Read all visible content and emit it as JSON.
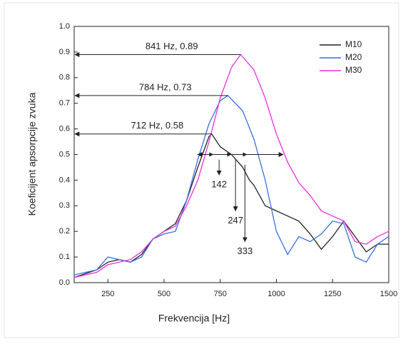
{
  "chart_data": {
    "type": "line",
    "xlabel": "Frekvencija [Hz]",
    "ylabel": "Koeficijent apsorpcije zvuka",
    "xlim": [
      100,
      1500
    ],
    "ylim": [
      0,
      1
    ],
    "xticks": [
      250,
      500,
      750,
      1000,
      1250,
      1500
    ],
    "yticks": [
      {
        "value": 0,
        "label": "0.0"
      },
      0.1,
      0.2,
      0.3,
      0.4,
      0.5,
      0.6,
      0.7,
      0.8,
      0.9,
      {
        "value": 1,
        "label": "1.0"
      }
    ],
    "legend": "upper right",
    "series": [
      {
        "name": "M10",
        "color": "#222222",
        "x": [
          100,
          200,
          250,
          300,
          350,
          400,
          450,
          500,
          550,
          600,
          650,
          700,
          712,
          750,
          800,
          850,
          880,
          900,
          950,
          1000,
          1050,
          1100,
          1150,
          1200,
          1250,
          1300,
          1350,
          1400,
          1450,
          1500
        ],
        "values": [
          0.02,
          0.05,
          0.08,
          0.09,
          0.08,
          0.11,
          0.17,
          0.2,
          0.23,
          0.32,
          0.45,
          0.57,
          0.58,
          0.53,
          0.5,
          0.45,
          0.4,
          0.38,
          0.3,
          0.28,
          0.26,
          0.24,
          0.19,
          0.13,
          0.18,
          0.24,
          0.18,
          0.12,
          0.15,
          0.15
        ]
      },
      {
        "name": "M20",
        "color": "#3b6fe0",
        "x": [
          100,
          200,
          250,
          300,
          350,
          400,
          450,
          500,
          550,
          600,
          650,
          700,
          750,
          784,
          850,
          900,
          950,
          1000,
          1050,
          1100,
          1150,
          1200,
          1250,
          1300,
          1350,
          1400,
          1450,
          1500
        ],
        "values": [
          0.03,
          0.05,
          0.1,
          0.09,
          0.08,
          0.1,
          0.17,
          0.19,
          0.2,
          0.32,
          0.48,
          0.62,
          0.71,
          0.73,
          0.67,
          0.56,
          0.4,
          0.2,
          0.11,
          0.18,
          0.16,
          0.19,
          0.24,
          0.23,
          0.1,
          0.08,
          0.15,
          0.18
        ]
      },
      {
        "name": "M30",
        "color": "#ee2de0",
        "x": [
          100,
          200,
          250,
          300,
          350,
          400,
          450,
          500,
          550,
          600,
          650,
          700,
          750,
          800,
          841,
          900,
          950,
          1000,
          1050,
          1100,
          1150,
          1200,
          1250,
          1300,
          1350,
          1400,
          1450,
          1500
        ],
        "values": [
          0.02,
          0.04,
          0.07,
          0.08,
          0.09,
          0.12,
          0.17,
          0.2,
          0.22,
          0.3,
          0.4,
          0.55,
          0.72,
          0.84,
          0.89,
          0.83,
          0.72,
          0.58,
          0.47,
          0.39,
          0.34,
          0.28,
          0.26,
          0.24,
          0.16,
          0.15,
          0.18,
          0.2
        ]
      }
    ],
    "peak_annotations": [
      {
        "label": "841 Hz, 0.89",
        "x": 841,
        "y": 0.89
      },
      {
        "label": "784 Hz, 0.73",
        "x": 784,
        "y": 0.73
      },
      {
        "label": "712 Hz, 0.58",
        "x": 712,
        "y": 0.58
      }
    ],
    "bandwidth": {
      "y": 0.5,
      "x": [
        650,
        720,
        800,
        870,
        1030
      ]
    },
    "drop_annotations": [
      {
        "label": "142",
        "x": 745,
        "y": [
          0.48,
          0.42
        ]
      },
      {
        "label": "247",
        "x": 818,
        "y": [
          0.48,
          0.28
        ]
      },
      {
        "label": "333",
        "x": 860,
        "y": [
          0.46,
          0.16
        ]
      }
    ]
  }
}
